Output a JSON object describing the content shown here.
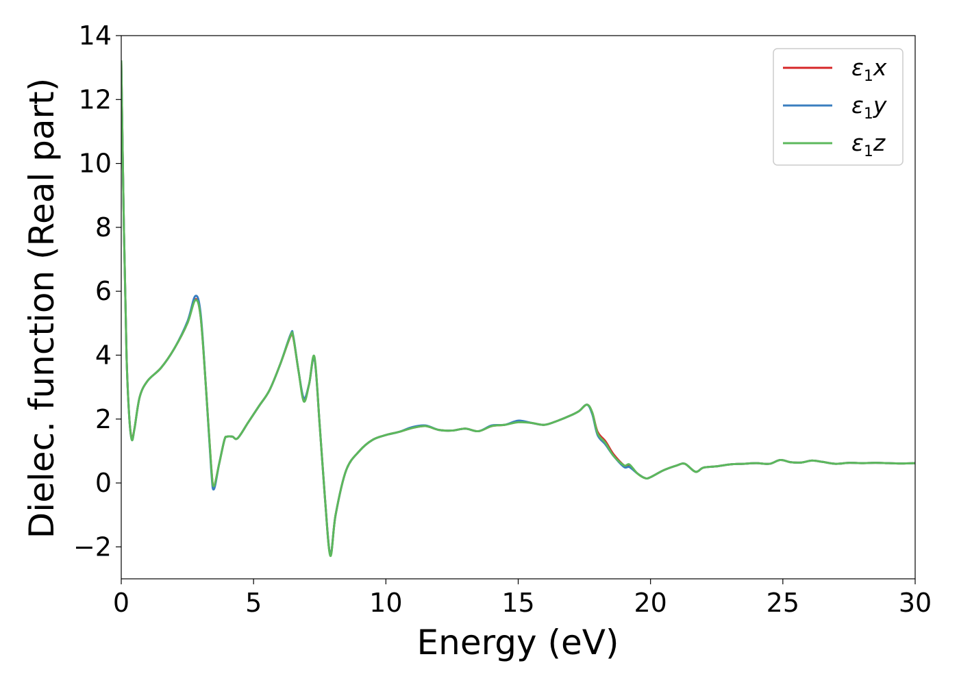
{
  "chart_data": {
    "type": "line",
    "xlabel": "Energy (eV)",
    "ylabel": "Dielec. function (Real part)",
    "xlim": [
      0,
      30
    ],
    "ylim": [
      -3,
      14
    ],
    "xticks": [
      0,
      5,
      10,
      15,
      20,
      25,
      30
    ],
    "yticks": [
      -2,
      0,
      2,
      4,
      6,
      8,
      10,
      12,
      14
    ],
    "xtick_labels": [
      "0",
      "5",
      "10",
      "15",
      "20",
      "25",
      "30"
    ],
    "ytick_labels": [
      "−2",
      "0",
      "2",
      "4",
      "6",
      "8",
      "10",
      "12",
      "14"
    ],
    "grid": false,
    "legend_position": "top-right",
    "series": [
      {
        "name": "ε1x",
        "legend_main": "ε",
        "legend_sub": "1",
        "legend_var": "x",
        "color": "#d62728",
        "x": [
          0,
          0.1,
          0.2,
          0.3,
          0.4,
          0.5,
          0.7,
          1.0,
          1.5,
          2.0,
          2.5,
          2.8,
          3.0,
          3.2,
          3.4,
          3.5,
          3.7,
          3.9,
          4.0,
          4.2,
          4.4,
          4.8,
          5.2,
          5.6,
          6.0,
          6.4,
          6.5,
          6.7,
          6.9,
          7.1,
          7.3,
          7.5,
          7.7,
          7.9,
          8.1,
          8.5,
          9.0,
          9.5,
          10.0,
          10.5,
          11.0,
          11.5,
          12.0,
          12.5,
          13.0,
          13.5,
          14.0,
          14.5,
          15.0,
          15.5,
          16.0,
          16.5,
          17.0,
          17.3,
          17.6,
          17.8,
          18.0,
          18.3,
          18.6,
          19.0,
          19.2,
          19.5,
          19.8,
          20.0,
          20.5,
          21.0,
          21.3,
          21.7,
          22.0,
          22.5,
          23.0,
          23.5,
          24.0,
          24.5,
          24.9,
          25.3,
          25.7,
          26.1,
          26.5,
          27.0,
          27.5,
          28.0,
          28.5,
          29.0,
          29.5,
          30.0
        ],
        "values": [
          13.2,
          8.0,
          4.0,
          2.1,
          1.4,
          1.7,
          2.7,
          3.2,
          3.6,
          4.2,
          5.0,
          5.75,
          5.2,
          3.0,
          0.5,
          -0.1,
          0.6,
          1.35,
          1.45,
          1.45,
          1.4,
          1.9,
          2.4,
          2.9,
          3.7,
          4.6,
          4.55,
          3.5,
          2.6,
          3.1,
          3.9,
          1.8,
          -0.5,
          -2.25,
          -1.0,
          0.4,
          1.0,
          1.35,
          1.5,
          1.6,
          1.72,
          1.78,
          1.66,
          1.64,
          1.7,
          1.62,
          1.78,
          1.82,
          1.93,
          1.88,
          1.82,
          1.95,
          2.12,
          2.25,
          2.45,
          2.2,
          1.6,
          1.3,
          0.9,
          0.55,
          0.55,
          0.3,
          0.15,
          0.18,
          0.4,
          0.55,
          0.6,
          0.35,
          0.48,
          0.52,
          0.58,
          0.6,
          0.62,
          0.6,
          0.72,
          0.65,
          0.64,
          0.7,
          0.66,
          0.6,
          0.63,
          0.62,
          0.63,
          0.62,
          0.61,
          0.62
        ]
      },
      {
        "name": "ε1y",
        "legend_main": "ε",
        "legend_sub": "1",
        "legend_var": "y",
        "color": "#3a7ebf",
        "x": [
          0,
          0.1,
          0.2,
          0.3,
          0.4,
          0.5,
          0.7,
          1.0,
          1.5,
          2.0,
          2.5,
          2.8,
          3.0,
          3.2,
          3.4,
          3.5,
          3.7,
          3.9,
          4.0,
          4.2,
          4.4,
          4.8,
          5.2,
          5.6,
          6.0,
          6.4,
          6.5,
          6.7,
          6.9,
          7.1,
          7.3,
          7.5,
          7.7,
          7.9,
          8.1,
          8.5,
          9.0,
          9.5,
          10.0,
          10.5,
          11.0,
          11.5,
          12.0,
          12.5,
          13.0,
          13.5,
          14.0,
          14.5,
          15.0,
          15.5,
          16.0,
          16.5,
          17.0,
          17.3,
          17.6,
          17.8,
          18.0,
          18.3,
          18.6,
          19.0,
          19.2,
          19.5,
          19.8,
          20.0,
          20.5,
          21.0,
          21.3,
          21.7,
          22.0,
          22.5,
          23.0,
          23.5,
          24.0,
          24.5,
          24.9,
          25.3,
          25.7,
          26.1,
          26.5,
          27.0,
          27.5,
          28.0,
          28.5,
          29.0,
          29.5,
          30.0
        ],
        "values": [
          13.2,
          8.0,
          4.0,
          2.1,
          1.35,
          1.7,
          2.7,
          3.2,
          3.6,
          4.2,
          5.05,
          5.85,
          5.3,
          3.0,
          0.4,
          -0.2,
          0.6,
          1.35,
          1.45,
          1.45,
          1.4,
          1.9,
          2.4,
          2.9,
          3.7,
          4.65,
          4.6,
          3.5,
          2.65,
          3.1,
          3.9,
          1.8,
          -0.5,
          -2.25,
          -1.0,
          0.4,
          1.0,
          1.35,
          1.5,
          1.6,
          1.75,
          1.8,
          1.66,
          1.64,
          1.7,
          1.62,
          1.8,
          1.82,
          1.95,
          1.88,
          1.82,
          1.95,
          2.12,
          2.25,
          2.45,
          2.15,
          1.5,
          1.2,
          0.85,
          0.5,
          0.5,
          0.3,
          0.15,
          0.18,
          0.4,
          0.55,
          0.6,
          0.35,
          0.48,
          0.52,
          0.58,
          0.6,
          0.62,
          0.6,
          0.72,
          0.65,
          0.64,
          0.7,
          0.66,
          0.6,
          0.63,
          0.62,
          0.63,
          0.62,
          0.61,
          0.62
        ]
      },
      {
        "name": "ε1z",
        "legend_main": "ε",
        "legend_sub": "1",
        "legend_var": "z",
        "color": "#5cb85c",
        "x": [
          0,
          0.1,
          0.2,
          0.3,
          0.4,
          0.5,
          0.7,
          1.0,
          1.5,
          2.0,
          2.5,
          2.8,
          3.0,
          3.2,
          3.4,
          3.5,
          3.7,
          3.9,
          4.0,
          4.2,
          4.4,
          4.8,
          5.2,
          5.6,
          6.0,
          6.4,
          6.5,
          6.7,
          6.9,
          7.1,
          7.3,
          7.5,
          7.7,
          7.9,
          8.1,
          8.5,
          9.0,
          9.5,
          10.0,
          10.5,
          11.0,
          11.5,
          12.0,
          12.5,
          13.0,
          13.5,
          14.0,
          14.5,
          15.0,
          15.5,
          16.0,
          16.5,
          17.0,
          17.3,
          17.6,
          17.8,
          18.0,
          18.3,
          18.6,
          19.0,
          19.2,
          19.5,
          19.8,
          20.0,
          20.5,
          21.0,
          21.3,
          21.7,
          22.0,
          22.5,
          23.0,
          23.5,
          24.0,
          24.5,
          24.9,
          25.3,
          25.7,
          26.1,
          26.5,
          27.0,
          27.5,
          28.0,
          28.5,
          29.0,
          29.5,
          30.0
        ],
        "values": [
          13.2,
          8.0,
          4.0,
          2.1,
          1.35,
          1.7,
          2.7,
          3.2,
          3.6,
          4.2,
          5.0,
          5.72,
          5.2,
          3.0,
          0.5,
          -0.1,
          0.6,
          1.35,
          1.45,
          1.45,
          1.4,
          1.9,
          2.4,
          2.9,
          3.7,
          4.62,
          4.57,
          3.5,
          2.55,
          3.1,
          3.95,
          1.8,
          -0.5,
          -2.28,
          -1.0,
          0.4,
          1.0,
          1.35,
          1.5,
          1.6,
          1.72,
          1.78,
          1.66,
          1.64,
          1.7,
          1.62,
          1.78,
          1.82,
          1.9,
          1.88,
          1.82,
          1.95,
          2.12,
          2.25,
          2.45,
          2.2,
          1.55,
          1.25,
          0.85,
          0.55,
          0.58,
          0.3,
          0.15,
          0.18,
          0.4,
          0.55,
          0.6,
          0.35,
          0.48,
          0.52,
          0.58,
          0.6,
          0.62,
          0.6,
          0.72,
          0.65,
          0.64,
          0.7,
          0.66,
          0.6,
          0.63,
          0.62,
          0.63,
          0.62,
          0.61,
          0.62
        ]
      }
    ]
  }
}
